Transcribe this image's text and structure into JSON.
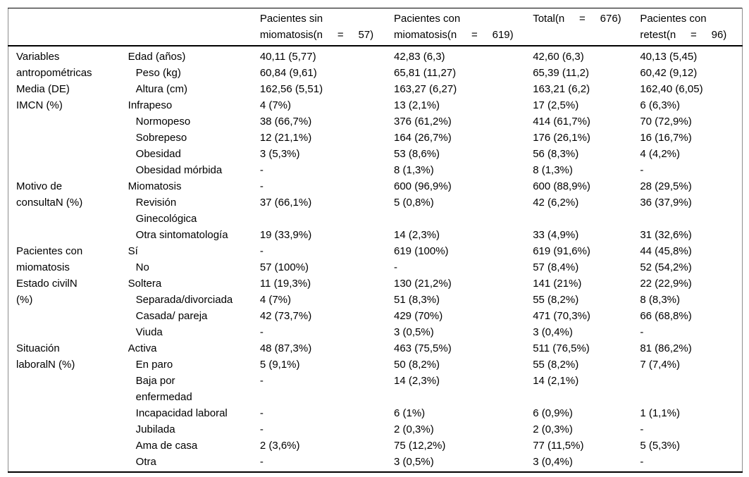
{
  "colors": {
    "text": "#000000",
    "background": "#ffffff",
    "horizontal_rules": "#000000",
    "side_border": "#8c8c8c"
  },
  "header": {
    "group": "",
    "variable": "",
    "sin": "Pacientes sin\nmiomatosis(n     =     57)",
    "con": "Pacientes con\nmiomatosis(n     =     619)",
    "total": "Total(n     =     676)",
    "retest": "Pacientes con\nretest(n     =     96)"
  },
  "rows": [
    {
      "group": "Variables\nantropométricas\nMedia (DE)",
      "label": "Edad (años)",
      "sin": "40,11 (5,77)",
      "con": "42,83 (6,3)",
      "total": "42,60 (6,3)",
      "retest": "40,13 (5,45)"
    },
    {
      "label": "Peso (kg)",
      "sin": "60,84 (9,61)",
      "con": "65,81 (11,27)",
      "total": "65,39 (11,2)",
      "retest": "60,42 (9,12)"
    },
    {
      "label": "Altura (cm)",
      "sin": "162,56 (5,51)",
      "con": "163,27 (6,27)",
      "total": "163,21 (6,2)",
      "retest": "162,40 (6,05)"
    },
    {
      "group": "IMCN (%)",
      "label": "Infrapeso",
      "sin": "4 (7%)",
      "con": "13 (2,1%)",
      "total": "17 (2,5%)",
      "retest": "6 (6,3%)"
    },
    {
      "label": "Normopeso",
      "sin": "38 (66,7%)",
      "con": "376 (61,2%)",
      "total": "414 (61,7%)",
      "retest": "70 (72,9%)"
    },
    {
      "label": "Sobrepeso",
      "sin": "12 (21,1%)",
      "con": "164 (26,7%)",
      "total": "176 (26,1%)",
      "retest": "16 (16,7%)"
    },
    {
      "label": "Obesidad",
      "sin": "3 (5,3%)",
      "con": "53 (8,6%)",
      "total": "56 (8,3%)",
      "retest": "4 (4,2%)"
    },
    {
      "label": "Obesidad mórbida",
      "sin": "-",
      "con": "8 (1,3%)",
      "total": "8 (1,3%)",
      "retest": "-"
    },
    {
      "group": "Motivo de\nconsultaN (%)",
      "label": "Miomatosis",
      "sin": "-",
      "con": "600 (96,9%)",
      "total": "600 (88,9%)",
      "retest": "28 (29,5%)"
    },
    {
      "label": "Revisión\nGinecológica",
      "sin": "37 (66,1%)",
      "con": "5 (0,8%)",
      "total": "42 (6,2%)",
      "retest": "36 (37,9%)"
    },
    {
      "label": "Otra sintomatología",
      "sin": "19 (33,9%)",
      "con": "14 (2,3%)",
      "total": "33 (4,9%)",
      "retest": "31 (32,6%)"
    },
    {
      "group": "Pacientes con\nmiomatosis",
      "label": "Sí",
      "sin": "-",
      "con": "619 (100%)",
      "total": "619 (91,6%)",
      "retest": "44 (45,8%)"
    },
    {
      "label": "No",
      "sin": "57 (100%)",
      "con": "-",
      "total": "57 (8,4%)",
      "retest": "52 (54,2%)"
    },
    {
      "group": "Estado civilN\n(%)",
      "label": "Soltera",
      "sin": "11 (19,3%)",
      "con": "130 (21,2%)",
      "total": "141 (21%)",
      "retest": "22 (22,9%)"
    },
    {
      "label": "Separada/divorciada",
      "sin": "4 (7%)",
      "con": "51 (8,3%)",
      "total": "55 (8,2%)",
      "retest": "8 (8,3%)"
    },
    {
      "label": "Casada/ pareja",
      "sin": "42 (73,7%)",
      "con": "429 (70%)",
      "total": "471 (70,3%)",
      "retest": "66 (68,8%)"
    },
    {
      "label": "Viuda",
      "sin": "-",
      "con": "3 (0,5%)",
      "total": "3 (0,4%)",
      "retest": "-"
    },
    {
      "group": "Situación\nlaboralN (%)",
      "label": "Activa",
      "sin": "48 (87,3%)",
      "con": "463 (75,5%)",
      "total": "511 (76,5%)",
      "retest": "81 (86,2%)"
    },
    {
      "label": "En paro",
      "sin": "5 (9,1%)",
      "con": "50 (8,2%)",
      "total": "55 (8,2%)",
      "retest": "7 (7,4%)"
    },
    {
      "label": "Baja por\nenfermedad",
      "sin": "-",
      "con": "14 (2,3%)",
      "total": "14 (2,1%)",
      "retest": ""
    },
    {
      "label": "Incapacidad laboral",
      "sin": "-",
      "con": "6 (1%)",
      "total": "6 (0,9%)",
      "retest": "1 (1,1%)"
    },
    {
      "label": "Jubilada",
      "sin": "-",
      "con": "2 (0,3%)",
      "total": "2 (0,3%)",
      "retest": "-"
    },
    {
      "label": "Ama de casa",
      "sin": "2 (3,6%)",
      "con": "75 (12,2%)",
      "total": "77 (11,5%)",
      "retest": "5 (5,3%)"
    },
    {
      "label": "Otra",
      "sin": "-",
      "con": "3 (0,5%)",
      "total": "3 (0,4%)",
      "retest": "-"
    }
  ]
}
